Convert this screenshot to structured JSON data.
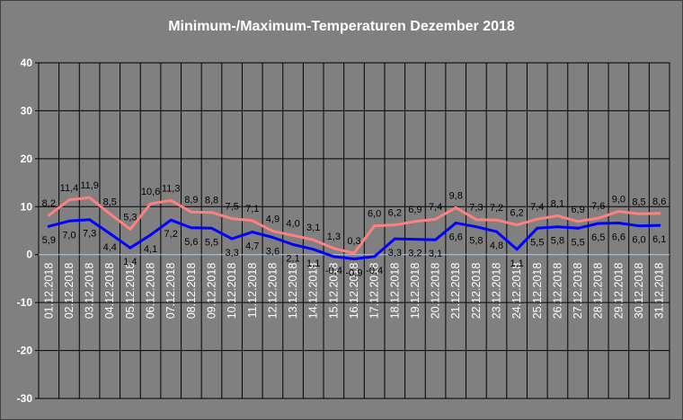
{
  "chart_data": {
    "type": "line",
    "title": "Minimum-/Maximum-Temperaturen Dezember 2018",
    "categories": [
      "01.12.2018",
      "02.12.2018",
      "03.12.2018",
      "04.12.2018",
      "05.12.2018",
      "06.12.2018",
      "07.12.2018",
      "08.12.2018",
      "09.12.2018",
      "10.12.2018",
      "11.12.2018",
      "12.12.2018",
      "13.12.2018",
      "14.12.2018",
      "15.12.2018",
      "16.12.2018",
      "17.12.2018",
      "18.12.2018",
      "19.12.2018",
      "20.12.2018",
      "21.12.2018",
      "22.12.2018",
      "23.12.2018",
      "24.12.2018",
      "25.12.2018",
      "26.12.2018",
      "27.12.2018",
      "28.12.2018",
      "29.12.2018",
      "30.12.2018",
      "31.12.2018"
    ],
    "series": [
      {
        "color": "#FF8080",
        "label_position": "above",
        "values": [
          8.2,
          11.4,
          11.9,
          8.5,
          5.3,
          10.6,
          11.3,
          8.9,
          8.8,
          7.5,
          7.1,
          4.9,
          4.0,
          3.1,
          1.3,
          0.3,
          6.0,
          6.2,
          6.9,
          7.4,
          9.8,
          7.3,
          7.2,
          6.2,
          7.4,
          8.1,
          6.9,
          7.6,
          9.0,
          8.5,
          8.6
        ]
      },
      {
        "color": "#0000FF",
        "label_position": "below",
        "values": [
          5.9,
          7.0,
          7.3,
          4.4,
          1.4,
          4.1,
          7.2,
          5.6,
          5.5,
          3.3,
          4.7,
          3.6,
          2.1,
          1.1,
          -0.4,
          -0.9,
          -0.4,
          3.3,
          3.2,
          3.1,
          6.6,
          5.8,
          4.8,
          1.1,
          5.5,
          5.8,
          5.5,
          6.5,
          6.6,
          6.0,
          6.1
        ]
      }
    ],
    "ylim": [
      -30,
      40
    ],
    "yticks": [
      40,
      30,
      20,
      10,
      0,
      -10,
      -20,
      -30
    ],
    "grid": true,
    "legend": "none",
    "data_labels": true,
    "colors": {
      "background": "#808080",
      "plot_background": "#808080",
      "grid": "#000000",
      "zero_line": "#99CCFF",
      "axis_text": "#FFFFFF",
      "data_label_text": "#000000",
      "frame": "#404040"
    }
  }
}
